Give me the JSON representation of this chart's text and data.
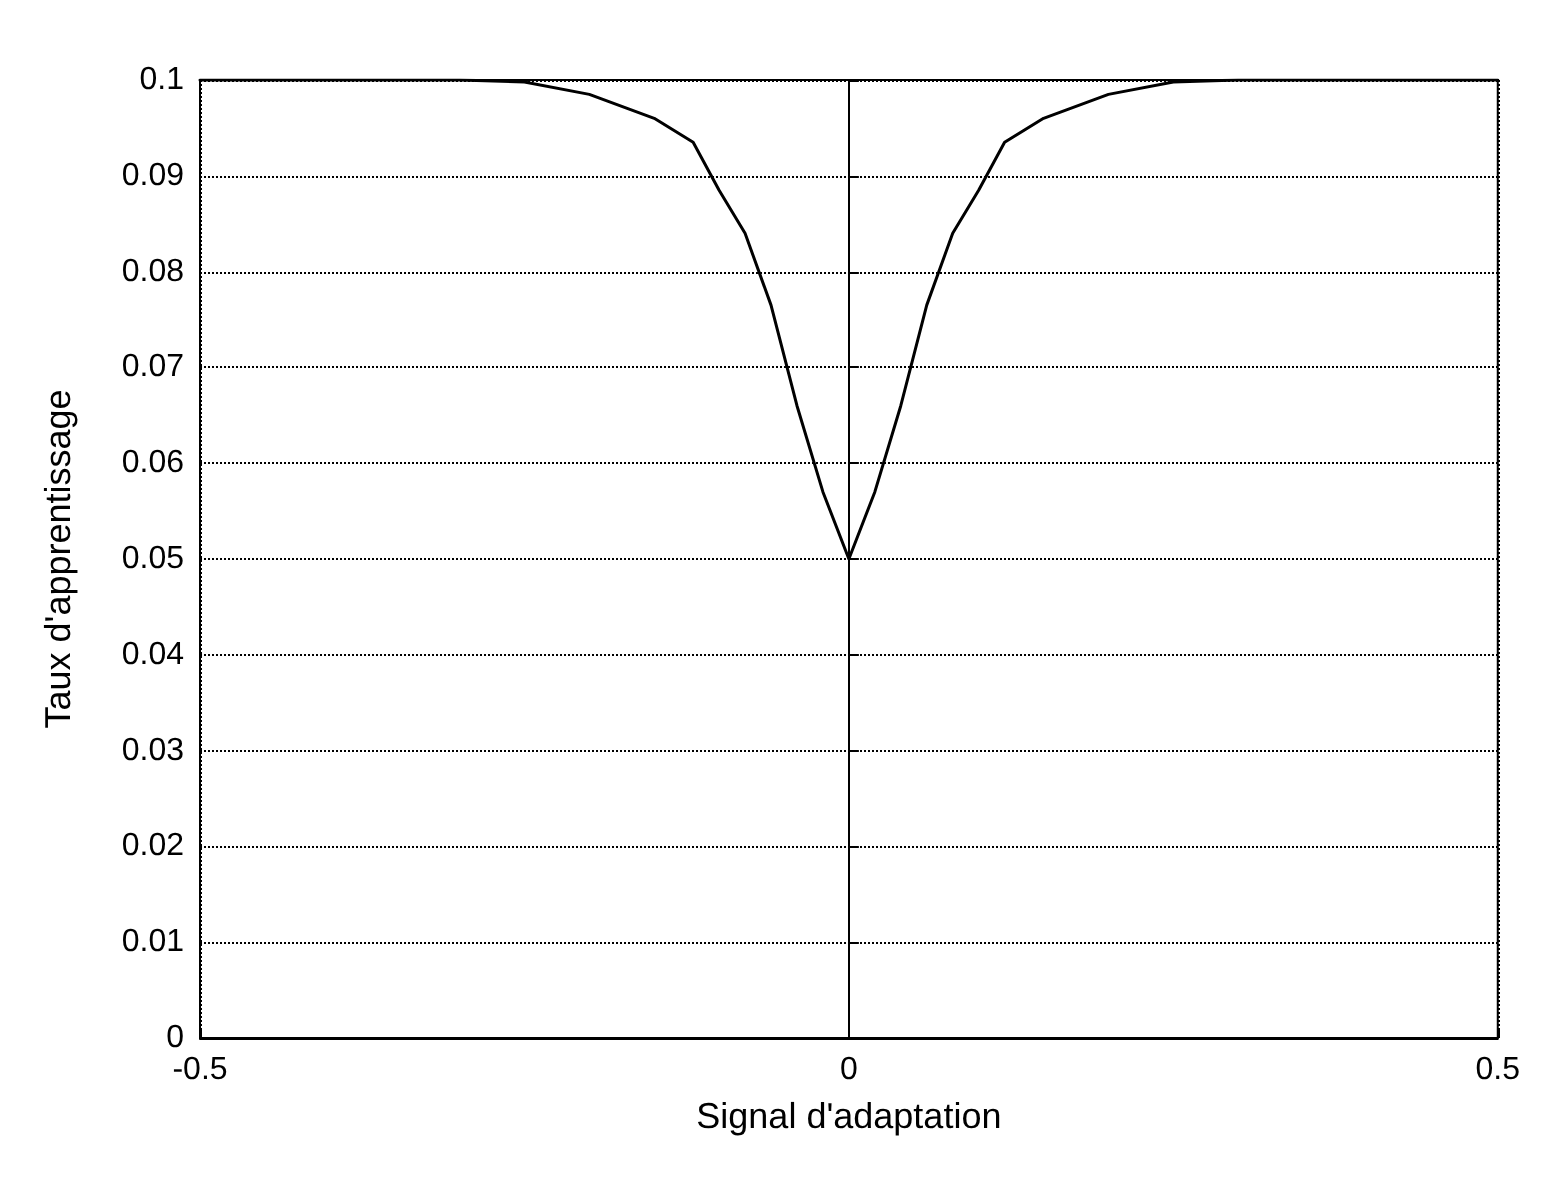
{
  "chart_data": {
    "type": "line",
    "xlabel": "Signal d'adaptation",
    "ylabel": "Taux d'apprentissage",
    "x": [
      -0.5,
      -0.3,
      -0.25,
      -0.2,
      -0.15,
      -0.12,
      -0.1,
      -0.08,
      -0.06,
      -0.04,
      -0.02,
      0,
      0.02,
      0.04,
      0.06,
      0.08,
      0.1,
      0.12,
      0.15,
      0.2,
      0.25,
      0.3,
      0.5
    ],
    "series": [
      {
        "color": "#000000",
        "values": [
          0.1,
          0.1,
          0.0998,
          0.0985,
          0.096,
          0.0935,
          0.0885,
          0.084,
          0.0765,
          0.066,
          0.057,
          0.05,
          0.057,
          0.066,
          0.0765,
          0.084,
          0.0885,
          0.0935,
          0.096,
          0.0985,
          0.0998,
          0.1,
          0.1
        ]
      }
    ],
    "xlim": [
      -0.5,
      0.5
    ],
    "xticks": [
      -0.5,
      0,
      0.5
    ],
    "ylim": [
      0,
      0.1
    ],
    "yticks": [
      0,
      0.01,
      0.02,
      0.03,
      0.04,
      0.05,
      0.06,
      0.07,
      0.08,
      0.09,
      0.1
    ],
    "grid": true,
    "marker": "none",
    "line_style": "solid"
  }
}
